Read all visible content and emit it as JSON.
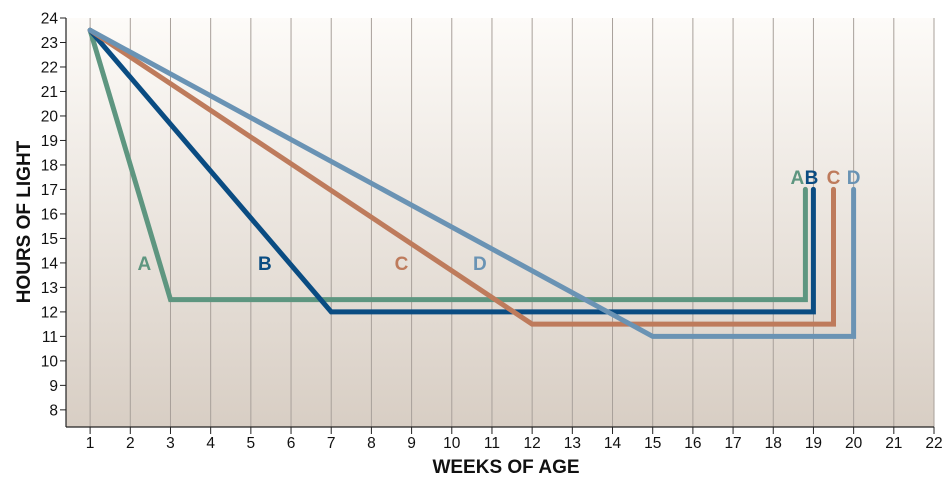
{
  "chart_data": {
    "type": "line",
    "xlabel": "WEEKS OF AGE",
    "ylabel": "HOURS OF LIGHT",
    "xlim": [
      0.4,
      22
    ],
    "ylim": [
      7.3,
      24
    ],
    "x_ticks": [
      "1",
      "2",
      "3",
      "4",
      "5",
      "6",
      "7",
      "8",
      "9",
      "10",
      "11",
      "12",
      "13",
      "14",
      "15",
      "16",
      "17",
      "18",
      "19",
      "20",
      "21",
      "22"
    ],
    "y_ticks": [
      "8",
      "9",
      "10",
      "11",
      "12",
      "13",
      "14",
      "15",
      "16",
      "17",
      "18",
      "19",
      "20",
      "21",
      "22",
      "23",
      "24"
    ],
    "grid": "vertical",
    "series": [
      {
        "name": "A",
        "color": "#5e9680",
        "points": [
          [
            1,
            23.5
          ],
          [
            3,
            12.5
          ],
          [
            18.8,
            12.5
          ],
          [
            18.8,
            17
          ]
        ],
        "labels": [
          {
            "x": 2.35,
            "y": 14
          },
          {
            "x": 18.6,
            "y": 17.5
          }
        ]
      },
      {
        "name": "B",
        "color": "#0a4c82",
        "points": [
          [
            1,
            23.5
          ],
          [
            7,
            12
          ],
          [
            19,
            12
          ],
          [
            19,
            17
          ]
        ],
        "labels": [
          {
            "x": 5.35,
            "y": 14
          },
          {
            "x": 18.95,
            "y": 17.5
          }
        ]
      },
      {
        "name": "C",
        "color": "#be7b5c",
        "points": [
          [
            1,
            23.5
          ],
          [
            12,
            11.5
          ],
          [
            19.5,
            11.5
          ],
          [
            19.5,
            17
          ]
        ],
        "labels": [
          {
            "x": 8.75,
            "y": 14
          },
          {
            "x": 19.5,
            "y": 17.5
          }
        ]
      },
      {
        "name": "D",
        "color": "#6a93b4",
        "points": [
          [
            1,
            23.5
          ],
          [
            15,
            11
          ],
          [
            20,
            11
          ],
          [
            20,
            17
          ]
        ],
        "labels": [
          {
            "x": 10.7,
            "y": 14
          },
          {
            "x": 20,
            "y": 17.5
          }
        ]
      }
    ]
  }
}
